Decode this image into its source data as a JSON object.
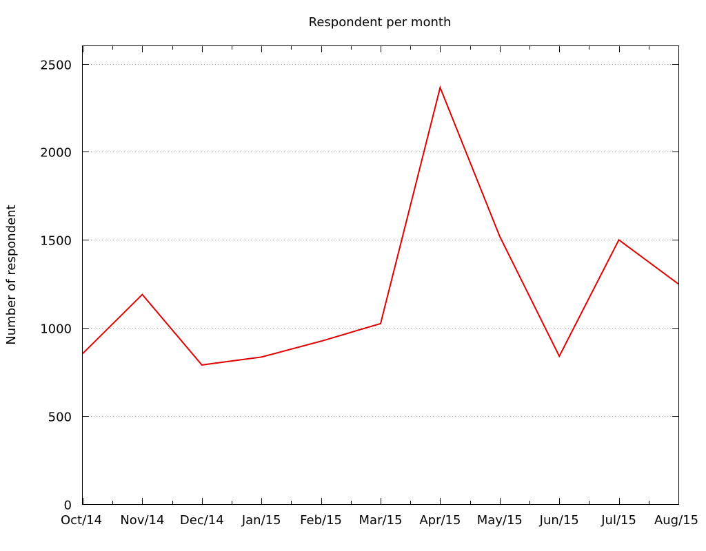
{
  "chart_data": {
    "type": "line",
    "title": "Respondent per month",
    "xlabel": "",
    "ylabel": "Number of respondent",
    "categories": [
      "Oct/14",
      "Nov/14",
      "Dec/14",
      "Jan/15",
      "Feb/15",
      "Mar/15",
      "Apr/15",
      "May/15",
      "Jun/15",
      "Jul/15",
      "Aug/15"
    ],
    "series": [
      {
        "name": "",
        "color": "#e00000",
        "values": [
          855,
          1190,
          790,
          835,
          925,
          1025,
          2365,
          1520,
          840,
          1500,
          1250
        ]
      }
    ],
    "ylim": [
      0,
      2600
    ],
    "yticks": [
      "0",
      "500",
      "1000",
      "1500",
      "2000",
      "2500"
    ],
    "ytick_values": [
      0,
      500,
      1000,
      1500,
      2000,
      2500
    ],
    "grid": "horizontal dotted",
    "legend": "none"
  }
}
